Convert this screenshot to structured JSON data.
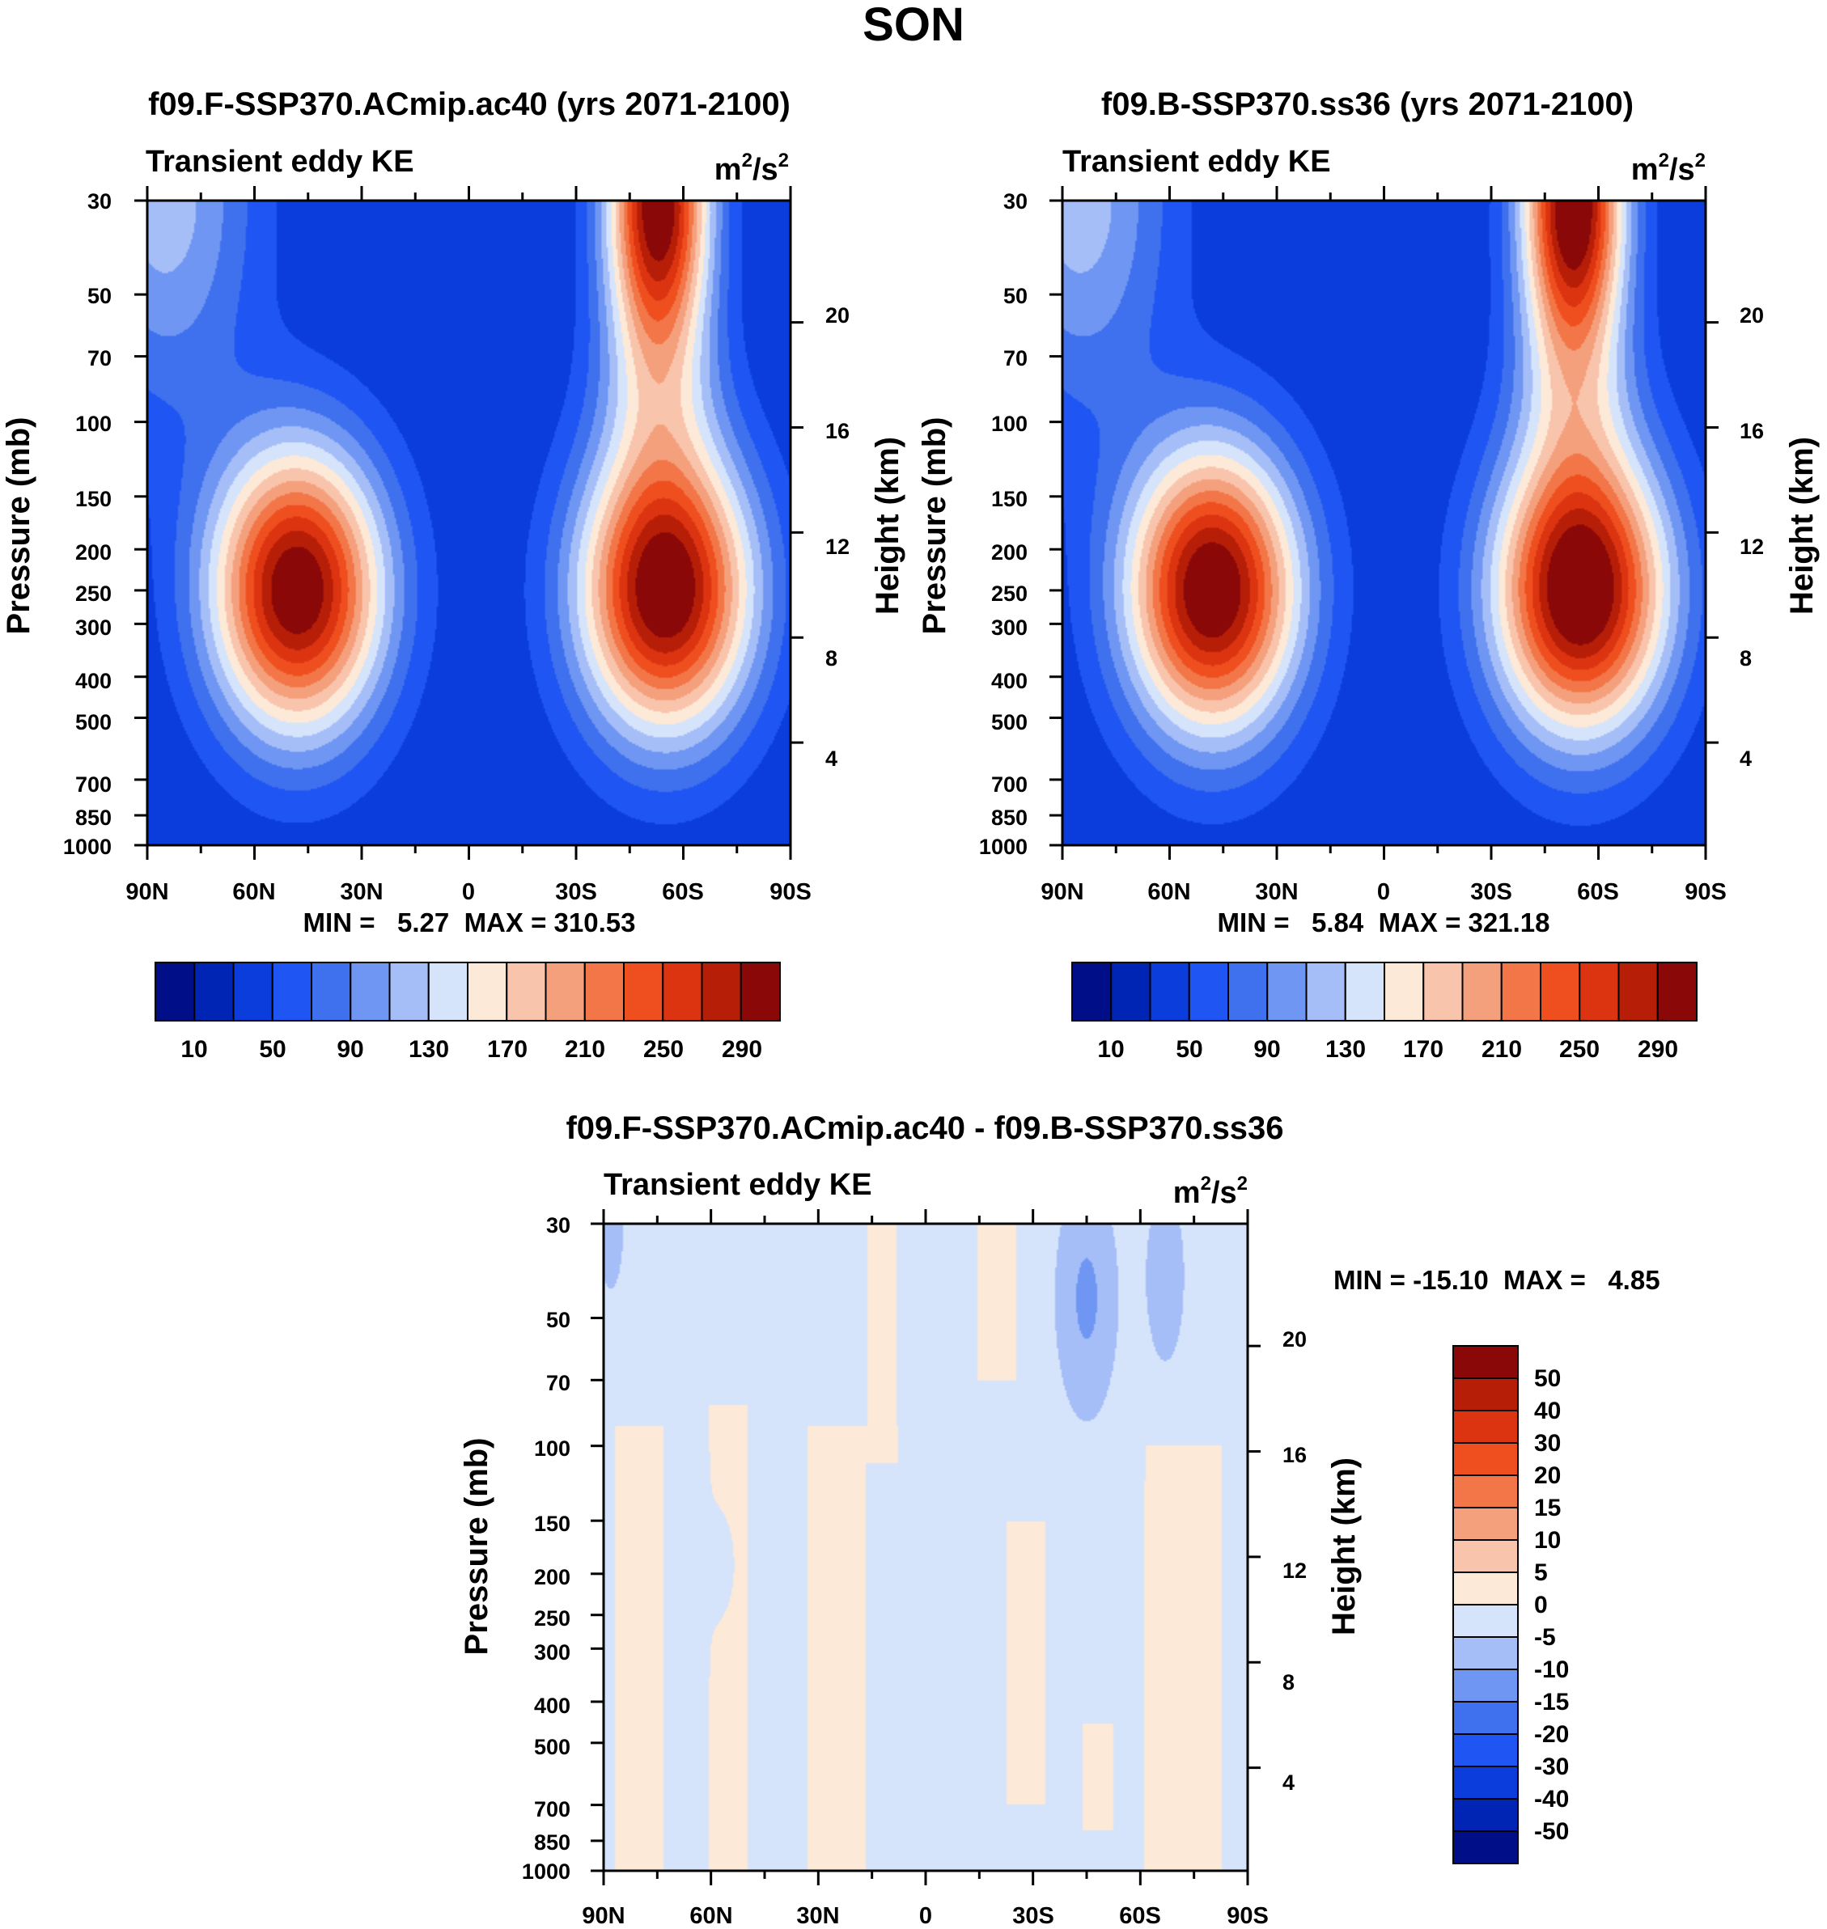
{
  "figure": {
    "title": "SON"
  },
  "colors": {
    "abs_levels": [
      "#000f87",
      "#0024b4",
      "#0a3ddc",
      "#1f55f2",
      "#3f70ee",
      "#6e96f2",
      "#a6bef8",
      "#d5e4fb",
      "#fde9d8",
      "#f9c4ac",
      "#f5a07c",
      "#f27647",
      "#ef4f1f",
      "#dc3410",
      "#b71e08",
      "#8a0808"
    ],
    "diff_levels": [
      "#000f87",
      "#0024b4",
      "#0a3ddc",
      "#1f55f2",
      "#3f70ee",
      "#6e96f2",
      "#a6bef8",
      "#d5e4fb",
      "#fde9d8",
      "#f9c4ac",
      "#f5a07c",
      "#f27647",
      "#ef4f1f",
      "#dc3410",
      "#b71e08",
      "#8a0808"
    ]
  },
  "chart_data": [
    {
      "type": "heatmap",
      "title": "f09.F-SSP370.ACmip.ac40 (yrs 2071-2100)",
      "left_title": "Transient eddy KE",
      "units_base": "m",
      "units_exp1": "2",
      "units_mid": "/s",
      "units_exp2": "2",
      "ylabel": "Pressure (mb)",
      "ylabel_right": "Height (km)",
      "x_ticks": [
        "90N",
        "60N",
        "30N",
        "0",
        "30S",
        "60S",
        "90S"
      ],
      "y_ticks": [
        30,
        50,
        70,
        100,
        150,
        200,
        250,
        300,
        400,
        500,
        700,
        850,
        1000
      ],
      "height_ticks": [
        20,
        16,
        12,
        8,
        4
      ],
      "stats_min_label": "MIN =",
      "stats_min": "5.27",
      "stats_max_label": "MAX =",
      "stats_max": "310.53",
      "colorbar_labels": [
        "10",
        "50",
        "90",
        "130",
        "170",
        "210",
        "250",
        "290"
      ],
      "field": {
        "background": 30,
        "blobs": [
          {
            "lat": 48,
            "p": 250,
            "sx": 17,
            "sy": 0.55,
            "amp": 285
          },
          {
            "lat": -55,
            "p": 250,
            "sx": 17,
            "sy": 0.55,
            "amp": 290
          },
          {
            "lat": -53,
            "p": 30,
            "sx": 10,
            "sy": 0.55,
            "amp": 280
          },
          {
            "lat": -53,
            "p": 80,
            "sx": 12,
            "sy": 0.45,
            "amp": 70
          },
          {
            "lat": 85,
            "p": 30,
            "sx": 18,
            "sy": 0.8,
            "amp": 90
          }
        ]
      }
    },
    {
      "type": "heatmap",
      "title": "f09.B-SSP370.ss36 (yrs 2071-2100)",
      "left_title": "Transient eddy KE",
      "units_base": "m",
      "units_exp1": "2",
      "units_mid": "/s",
      "units_exp2": "2",
      "ylabel": "Pressure (mb)",
      "ylabel_right": "Height (km)",
      "x_ticks": [
        "90N",
        "60N",
        "30N",
        "0",
        "30S",
        "60S",
        "90S"
      ],
      "y_ticks": [
        30,
        50,
        70,
        100,
        150,
        200,
        250,
        300,
        400,
        500,
        700,
        850,
        1000
      ],
      "height_ticks": [
        20,
        16,
        12,
        8,
        4
      ],
      "stats_min_label": "MIN =",
      "stats_min": "5.84",
      "stats_max_label": "MAX =",
      "stats_max": "321.18",
      "colorbar_labels": [
        "10",
        "50",
        "90",
        "130",
        "170",
        "210",
        "250",
        "290"
      ],
      "field": {
        "background": 30,
        "blobs": [
          {
            "lat": 48,
            "p": 250,
            "sx": 17,
            "sy": 0.55,
            "amp": 290
          },
          {
            "lat": -55,
            "p": 250,
            "sx": 17,
            "sy": 0.55,
            "amp": 300
          },
          {
            "lat": -53,
            "p": 30,
            "sx": 10,
            "sy": 0.55,
            "amp": 290
          },
          {
            "lat": -53,
            "p": 80,
            "sx": 12,
            "sy": 0.45,
            "amp": 70
          },
          {
            "lat": 85,
            "p": 30,
            "sx": 18,
            "sy": 0.8,
            "amp": 90
          }
        ]
      }
    },
    {
      "type": "heatmap",
      "title": "f09.F-SSP370.ACmip.ac40 - f09.B-SSP370.ss36",
      "left_title": "Transient eddy KE",
      "units_base": "m",
      "units_exp1": "2",
      "units_mid": "/s",
      "units_exp2": "2",
      "ylabel": "Pressure (mb)",
      "ylabel_right": "Height (km)",
      "x_ticks": [
        "90N",
        "60N",
        "30N",
        "0",
        "30S",
        "60S",
        "90S"
      ],
      "y_ticks": [
        30,
        50,
        70,
        100,
        150,
        200,
        250,
        300,
        400,
        500,
        700,
        850,
        1000
      ],
      "height_ticks": [
        20,
        16,
        12,
        8,
        4
      ],
      "stats_min_label": "MIN =",
      "stats_min": "-15.10",
      "stats_max_label": "MAX =",
      "stats_max": "4.85",
      "colorbar_labels": [
        "50",
        "40",
        "30",
        "20",
        "15",
        "10",
        "5",
        "0",
        "-5",
        "-10",
        "-15",
        "-20",
        "-30",
        "-40",
        "-50"
      ],
      "field": {
        "background": -2,
        "positive_bands": [
          {
            "lat": 80,
            "width": 5,
            "pmin": 90,
            "pmax": 1000
          },
          {
            "lat": 55,
            "width": 4,
            "pmin": 80,
            "pmax": 1000
          },
          {
            "lat": 25,
            "width": 6,
            "pmin": 90,
            "pmax": 1000
          },
          {
            "lat": 12,
            "width": 3,
            "pmin": 30,
            "pmax": 110
          },
          {
            "lat": -20,
            "width": 4,
            "pmin": 30,
            "pmax": 70
          },
          {
            "lat": -28,
            "width": 4,
            "pmin": 150,
            "pmax": 700
          },
          {
            "lat": -48,
            "width": 3,
            "pmin": 450,
            "pmax": 800
          },
          {
            "lat": -72,
            "width": 8,
            "pmin": 100,
            "pmax": 1000
          }
        ],
        "negative_spots": [
          {
            "lat": -45,
            "p": 45,
            "sx": 6,
            "sy": 0.45,
            "amp": -9
          },
          {
            "lat": -67,
            "p": 40,
            "sx": 4,
            "sy": 0.35,
            "amp": -7
          },
          {
            "lat": 57,
            "p": 190,
            "sx": 2.5,
            "sy": 0.2,
            "amp": -7
          },
          {
            "lat": 88,
            "p": 30,
            "sx": 3,
            "sy": 0.3,
            "amp": -6
          }
        ]
      }
    }
  ]
}
